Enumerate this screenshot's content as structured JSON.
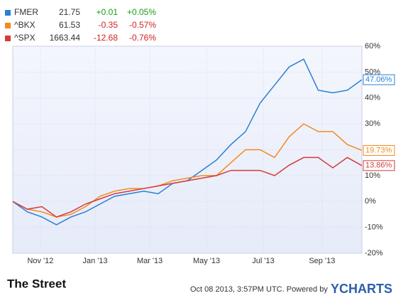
{
  "chart_data": {
    "type": "line",
    "x": [
      0,
      0.5,
      1,
      1.5,
      2,
      2.5,
      3,
      3.5,
      4,
      4.5,
      5,
      5.5,
      6,
      6.5,
      7,
      7.5,
      8,
      8.5,
      9,
      9.5,
      10,
      10.5,
      11,
      11.5,
      12
    ],
    "xlim": [
      0,
      12
    ],
    "xticks": [
      {
        "value": 0.95,
        "label": "Nov '12"
      },
      {
        "value": 2.83,
        "label": "Jan '13"
      },
      {
        "value": 4.71,
        "label": "Mar '13"
      },
      {
        "value": 6.66,
        "label": "May '13"
      },
      {
        "value": 8.61,
        "label": "Jul '13"
      },
      {
        "value": 10.63,
        "label": "Sep '13"
      }
    ],
    "ylim": [
      -20,
      60
    ],
    "yticks": [
      {
        "value": -20,
        "label": "-20%"
      },
      {
        "value": -10,
        "label": "-10%"
      },
      {
        "value": 0,
        "label": "0%"
      },
      {
        "value": 10,
        "label": "10%"
      },
      {
        "value": 20,
        "label": "20%"
      },
      {
        "value": 30,
        "label": "30%"
      },
      {
        "value": 40,
        "label": "40%"
      },
      {
        "value": 50,
        "label": "50%"
      },
      {
        "value": 60,
        "label": "60%"
      }
    ],
    "grid": true,
    "series": [
      {
        "name": "FMER",
        "color": "#2a7fd4",
        "price": "21.75",
        "change": "+0.01",
        "change_pct": "+0.05%",
        "end_label": "47.06%",
        "values": [
          0,
          -4,
          -6,
          -9,
          -6,
          -4,
          -1,
          2,
          3,
          4,
          3,
          7,
          8,
          12,
          16,
          22,
          27,
          38,
          45,
          52,
          55,
          43,
          42,
          43,
          47.06
        ]
      },
      {
        "name": "^BKX",
        "color": "#f28a1e",
        "price": "61.53",
        "change": "-0.35",
        "change_pct": "-0.57%",
        "end_label": "19.73%",
        "values": [
          0,
          -3,
          -4,
          -6,
          -5,
          -2,
          2,
          4,
          5,
          5,
          6,
          8,
          9,
          10,
          10,
          15,
          20,
          20,
          17,
          25,
          30,
          27,
          27,
          22,
          19.73
        ]
      },
      {
        "name": "^SPX",
        "color": "#d63a3a",
        "price": "1663.44",
        "change": "-12.68",
        "change_pct": "-0.76%",
        "end_label": "13.86%",
        "values": [
          0,
          -3,
          -2,
          -6,
          -4,
          -1,
          1,
          3,
          4,
          5,
          6,
          7,
          8,
          9,
          10,
          12,
          12,
          12,
          10,
          14,
          17,
          17,
          13,
          17,
          13.86
        ]
      }
    ]
  },
  "footer": {
    "brand": "The Street",
    "timestamp": "Oct 08 2013, 3:57PM UTC.  Powered by",
    "ycharts": "YCHARTS"
  }
}
